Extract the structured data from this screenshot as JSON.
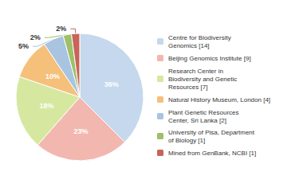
{
  "chart_data": {
    "type": "pie",
    "categories": [
      "Centre for Biodiversity\nGenomics [14]",
      "Beijing Genomics Institute [9]",
      "Research Center in\nBiodiversity and Genetic\nResources [7]",
      "Natural History Museum, London [4]",
      "Plant Genetic Resources\nCenter, Sri Lanka [2]",
      "University of Pisa, Department\nof Biology [1]",
      "Mined from GenBank, NCBI [1]"
    ],
    "values": [
      36,
      23,
      18,
      10,
      5,
      2,
      2
    ],
    "value_labels": [
      "36%",
      "23%",
      "18%",
      "10%",
      "5%",
      "2%",
      "2%"
    ],
    "colors": [
      "#c5d8ed",
      "#f2b8b0",
      "#d6e8a0",
      "#f5c07a",
      "#a8c4e0",
      "#9dc068",
      "#c8645a"
    ],
    "data_labels": true,
    "legend": "right"
  }
}
